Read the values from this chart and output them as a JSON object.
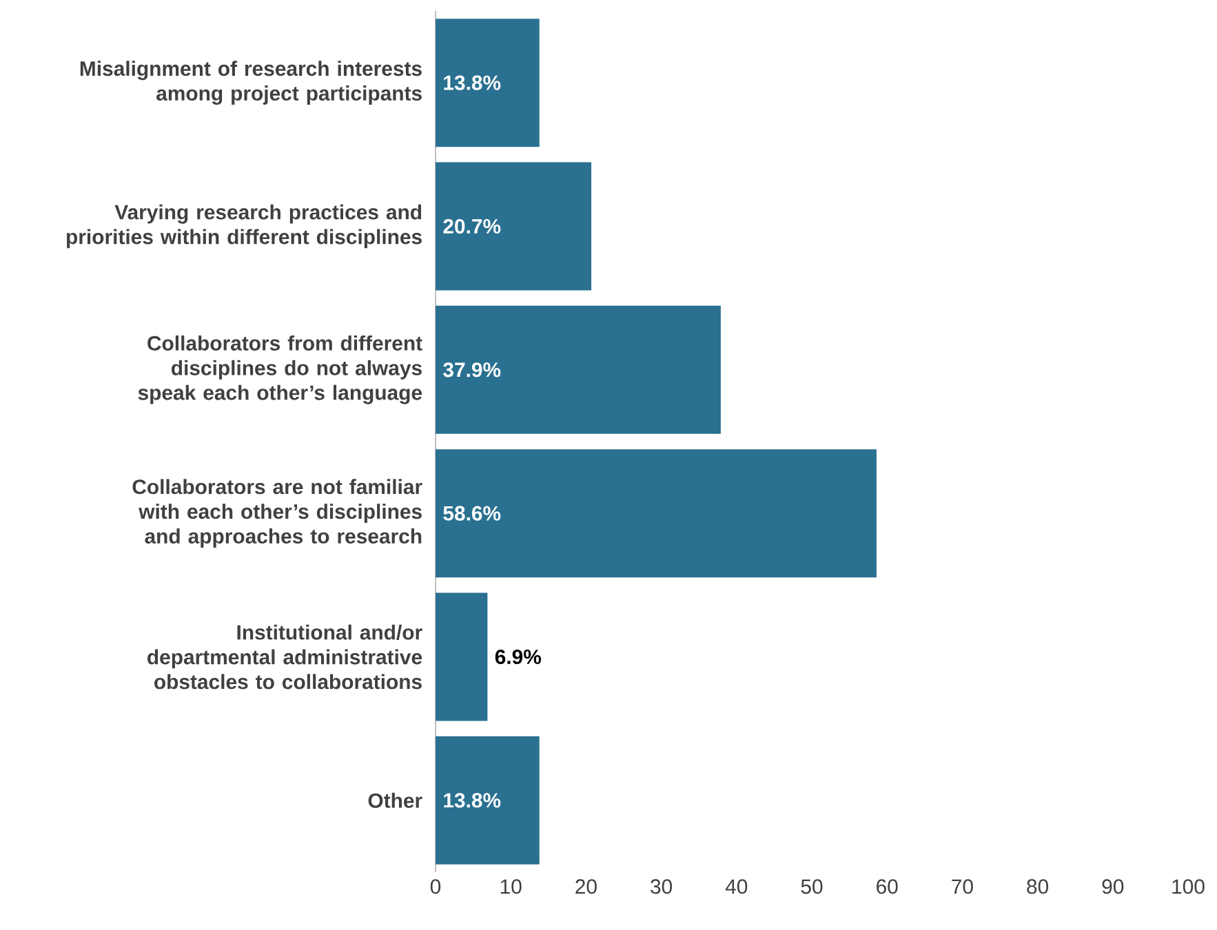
{
  "chart_data": {
    "type": "bar",
    "orientation": "horizontal",
    "categories": [
      "Misalignment of research interests among project participants",
      "Varying research practices and priorities within different disciplines",
      "Collaborators from different disciplines do not always speak each other’s language",
      "Collaborators are not familiar with each other’s disciplines and approaches to research",
      "Institutional and/or departmental administrative obstacles to collaborations",
      "Other"
    ],
    "values": [
      13.8,
      20.7,
      37.9,
      58.6,
      6.9,
      13.8
    ],
    "value_labels": [
      "13.8%",
      "20.7%",
      "37.9%",
      "58.6%",
      "6.9%",
      "13.8%"
    ],
    "color": "#2a7090",
    "xlim": [
      0,
      100
    ],
    "xticks": [
      0,
      10,
      20,
      30,
      40,
      50,
      60,
      70,
      80,
      90,
      100
    ]
  }
}
